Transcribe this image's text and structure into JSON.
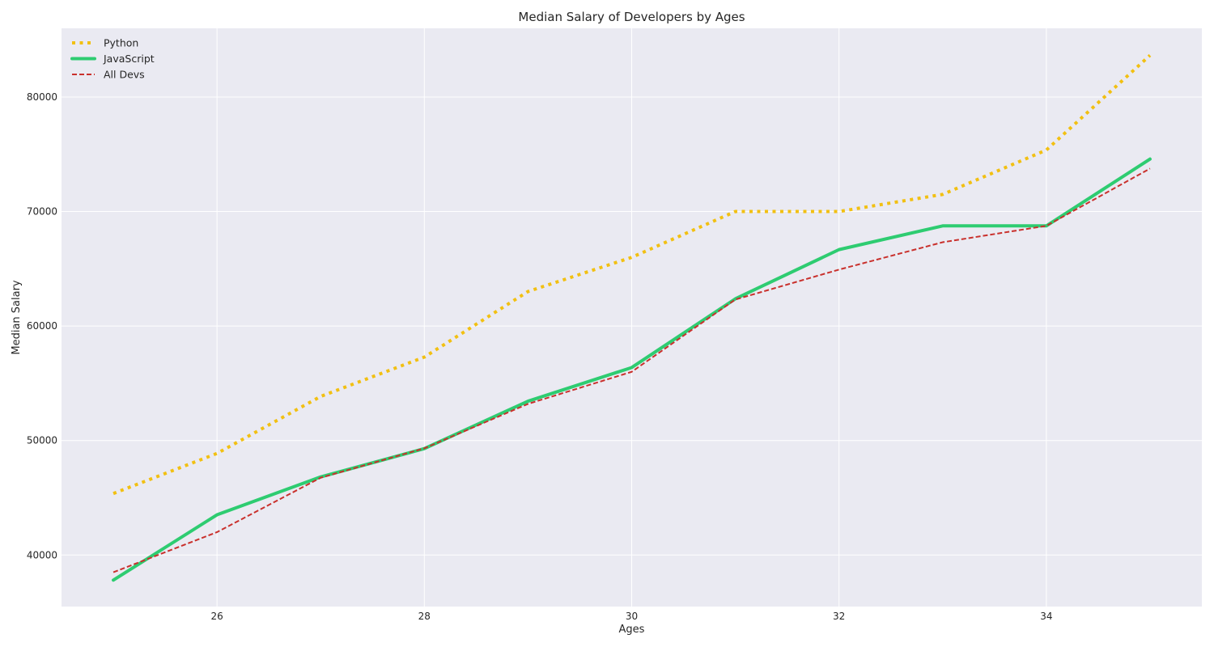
{
  "chart_data": {
    "type": "line",
    "title": "Median Salary of Developers by Ages",
    "xlabel": "Ages",
    "ylabel": "Median Salary",
    "x": [
      25,
      26,
      27,
      28,
      29,
      30,
      31,
      32,
      33,
      34,
      35
    ],
    "xlim": [
      24.5,
      35.5
    ],
    "ylim": [
      35500,
      86000
    ],
    "x_ticks": [
      26,
      28,
      30,
      32,
      34
    ],
    "y_ticks": [
      40000,
      50000,
      60000,
      70000,
      80000
    ],
    "x_tick_labels": [
      "26",
      "28",
      "30",
      "32",
      "34"
    ],
    "y_tick_labels": [
      "40000",
      "50000",
      "60000",
      "70000",
      "80000"
    ],
    "grid": true,
    "legend_position": "top-left",
    "background_color": "#eaeaf2",
    "grid_color": "#ffffff",
    "series": [
      {
        "name": "Python",
        "values": [
          45372,
          48876,
          53850,
          57287,
          63016,
          65998,
          70003,
          70000,
          71496,
          75370,
          83640
        ],
        "color": "#f2c012",
        "line_style": "dotted"
      },
      {
        "name": "JavaScript",
        "values": [
          37810,
          43515,
          46823,
          49293,
          53437,
          56373,
          62375,
          66674,
          68745,
          68746,
          74583
        ],
        "color": "#2ecc71",
        "line_style": "solid"
      },
      {
        "name": "All Devs",
        "values": [
          38496,
          42000,
          46752,
          49320,
          53200,
          56000,
          62316,
          64928,
          67317,
          68748,
          73752
        ],
        "color": "#c9302c",
        "line_style": "dashed"
      }
    ]
  }
}
